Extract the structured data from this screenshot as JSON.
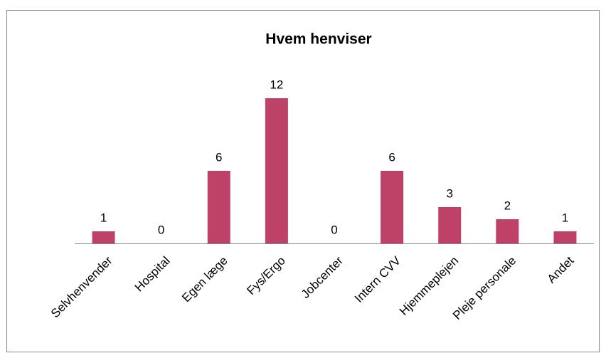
{
  "chart_data": {
    "type": "bar",
    "title": "Hvem henviser",
    "categories": [
      "Selvhenvender",
      "Hospital",
      "Egen læge",
      "Fys/Ergo",
      "Jobcenter",
      "Intern CVV",
      "Hjemmeplejen",
      "Pleje personale",
      "Andet"
    ],
    "values": [
      1,
      0,
      6,
      12,
      0,
      6,
      3,
      2,
      1
    ],
    "color": "#be4168"
  }
}
